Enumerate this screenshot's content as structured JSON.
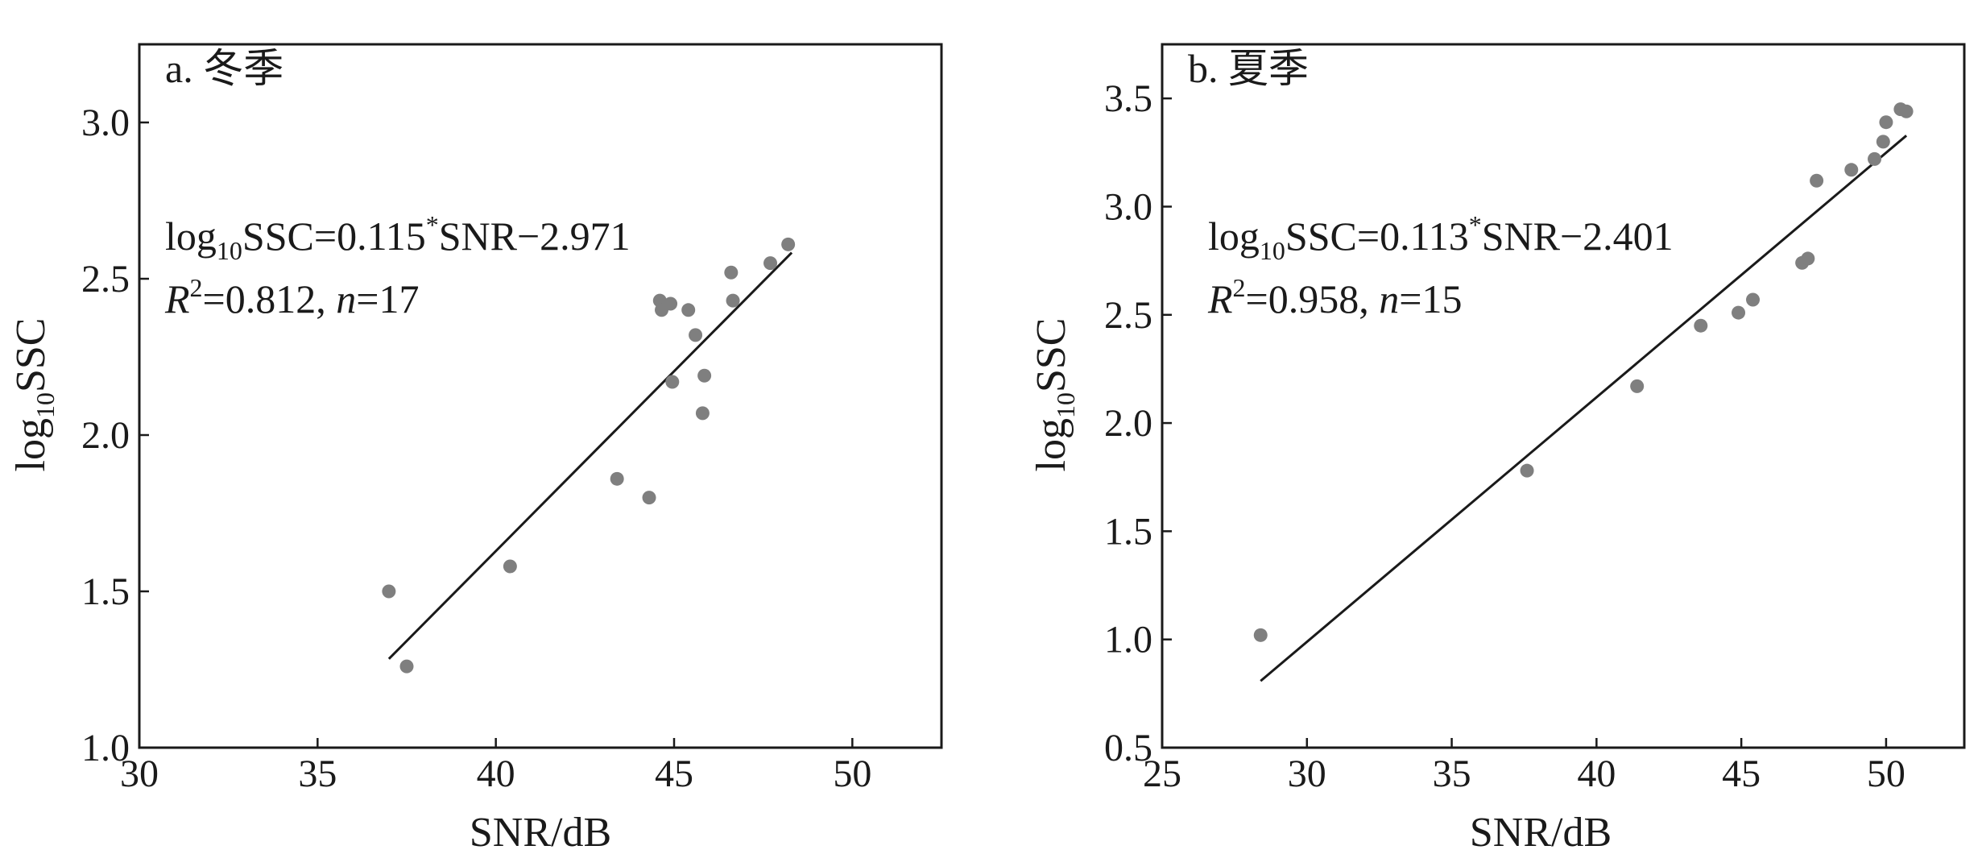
{
  "colors": {
    "points": "#7f7f7f",
    "line": "#1a1a1a",
    "axes": "#1a1a1a"
  },
  "chart_data": [
    {
      "type": "scatter",
      "panel_label": "a. 冬季",
      "xlabel": "SNR/dB",
      "ylabel_main": "log",
      "ylabel_sub": "10",
      "ylabel_tail": "SSC",
      "xlim": [
        30,
        52.5
      ],
      "ylim": [
        1.0,
        3.25
      ],
      "xticks": [
        30,
        35,
        40,
        45,
        50
      ],
      "xtick_labels": [
        "30",
        "35",
        "40",
        "45",
        "50"
      ],
      "yticks": [
        1.0,
        1.5,
        2.0,
        2.5,
        3.0
      ],
      "ytick_labels": [
        "1.0",
        "1.5",
        "2.0",
        "2.5",
        "3.0"
      ],
      "equation": {
        "lhs_main": "log",
        "lhs_sub": "10",
        "lhs_tail": "SSC=0.115",
        "star": "*",
        "rhs": "SNR−2.971",
        "r2_symbol": "R",
        "r2_exp": "2",
        "r2_value": "=0.812, ",
        "n_symbol": "n",
        "n_value": "=17"
      },
      "fit": {
        "slope": 0.115,
        "intercept": -2.971,
        "x_range": [
          37.0,
          48.3
        ]
      },
      "points": [
        {
          "x": 37.0,
          "y": 1.5
        },
        {
          "x": 37.5,
          "y": 1.26
        },
        {
          "x": 40.4,
          "y": 1.58
        },
        {
          "x": 43.4,
          "y": 1.86
        },
        {
          "x": 44.3,
          "y": 1.8
        },
        {
          "x": 44.6,
          "y": 2.43
        },
        {
          "x": 44.65,
          "y": 2.4
        },
        {
          "x": 44.9,
          "y": 2.42
        },
        {
          "x": 44.95,
          "y": 2.17
        },
        {
          "x": 45.4,
          "y": 2.4
        },
        {
          "x": 45.6,
          "y": 2.32
        },
        {
          "x": 45.8,
          "y": 2.07
        },
        {
          "x": 45.85,
          "y": 2.19
        },
        {
          "x": 46.6,
          "y": 2.52
        },
        {
          "x": 46.65,
          "y": 2.43
        },
        {
          "x": 47.7,
          "y": 2.55
        },
        {
          "x": 48.2,
          "y": 2.61
        }
      ]
    },
    {
      "type": "scatter",
      "panel_label": "b. 夏季",
      "xlabel": "SNR/dB",
      "ylabel_main": "log",
      "ylabel_sub": "10",
      "ylabel_tail": "SSC",
      "xlim": [
        25,
        52.7
      ],
      "ylim": [
        0.5,
        3.75
      ],
      "xticks": [
        25,
        30,
        35,
        40,
        45,
        50
      ],
      "xtick_labels": [
        "25",
        "30",
        "35",
        "40",
        "45",
        "50"
      ],
      "yticks": [
        0.5,
        1.0,
        1.5,
        2.0,
        2.5,
        3.0,
        3.5
      ],
      "ytick_labels": [
        "0.5",
        "1.0",
        "1.5",
        "2.0",
        "2.5",
        "3.0",
        "3.5"
      ],
      "equation": {
        "lhs_main": "log",
        "lhs_sub": "10",
        "lhs_tail": "SSC=0.113",
        "star": "*",
        "rhs": "SNR−2.401",
        "r2_symbol": "R",
        "r2_exp": "2",
        "r2_value": "=0.958, ",
        "n_symbol": "n",
        "n_value": "=15"
      },
      "fit": {
        "slope": 0.113,
        "intercept": -2.401,
        "x_range": [
          28.4,
          50.7
        ]
      },
      "points": [
        {
          "x": 28.4,
          "y": 1.02
        },
        {
          "x": 37.6,
          "y": 1.78
        },
        {
          "x": 41.4,
          "y": 2.17
        },
        {
          "x": 43.6,
          "y": 2.45
        },
        {
          "x": 44.9,
          "y": 2.51
        },
        {
          "x": 45.4,
          "y": 2.57
        },
        {
          "x": 47.1,
          "y": 2.74
        },
        {
          "x": 47.3,
          "y": 2.76
        },
        {
          "x": 47.6,
          "y": 3.12
        },
        {
          "x": 48.8,
          "y": 3.17
        },
        {
          "x": 49.6,
          "y": 3.22
        },
        {
          "x": 49.9,
          "y": 3.3
        },
        {
          "x": 50.0,
          "y": 3.39
        },
        {
          "x": 50.5,
          "y": 3.45
        },
        {
          "x": 50.7,
          "y": 3.44
        }
      ]
    }
  ]
}
